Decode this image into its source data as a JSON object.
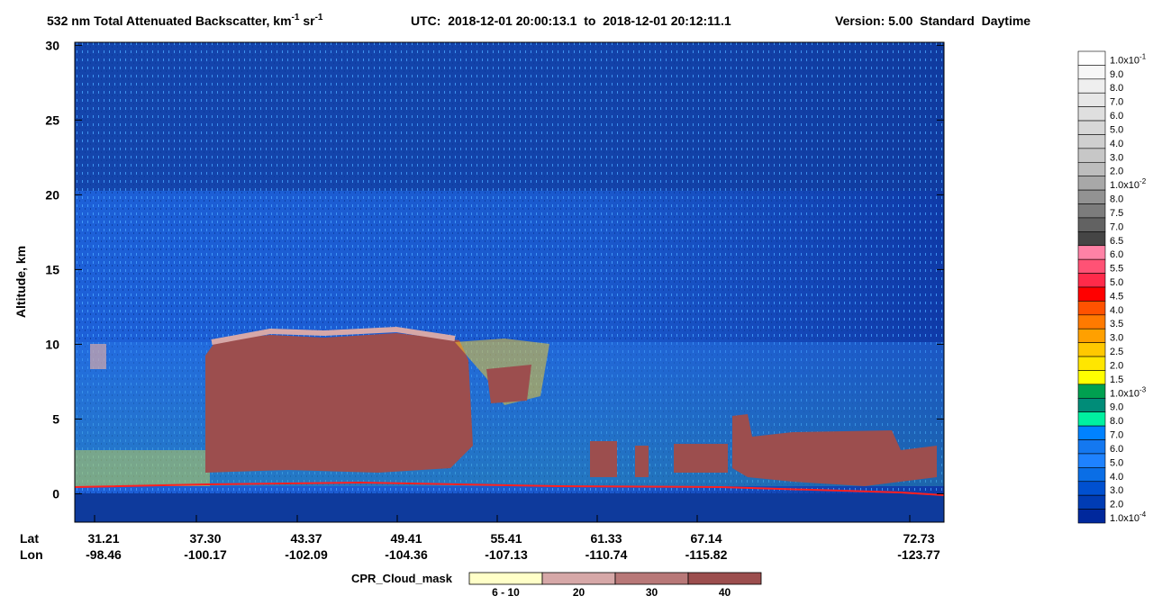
{
  "chart_data": {
    "type": "heatmap",
    "title_parts": [
      "532 nm Total Attenuated Backscatter, km",
      "-1",
      " sr",
      "-1",
      "UTC:  2018-12-01 20:00:13.1  to  2018-12-01 20:12:11.1",
      "Version: 5.00  Standard  Daytime"
    ],
    "y_label": "Altitude, km",
    "ylim": [
      -1.9,
      30.2
    ],
    "yticks": [
      0,
      5,
      10,
      15,
      20,
      25,
      30
    ],
    "x_row_labels": [
      "Lat",
      "Lon"
    ],
    "x_ticks": [
      {
        "lat": "31.21",
        "lon": "-98.46"
      },
      {
        "lat": "37.30",
        "lon": "-100.17"
      },
      {
        "lat": "43.37",
        "lon": "-102.09"
      },
      {
        "lat": "49.41",
        "lon": "-104.36"
      },
      {
        "lat": "55.41",
        "lon": "-107.13"
      },
      {
        "lat": "61.33",
        "lon": "-110.74"
      },
      {
        "lat": "67.14",
        "lon": "-115.82"
      },
      {
        "lat": "72.73",
        "lon": "-123.77"
      }
    ],
    "colorbar": [
      {
        "label": "1.0x10",
        "exp": "-1",
        "color": "#ffffff"
      },
      {
        "label": "9.0",
        "color": "#f7f7f7"
      },
      {
        "label": "8.0",
        "color": "#efefef"
      },
      {
        "label": "7.0",
        "color": "#e7e7e7"
      },
      {
        "label": "6.0",
        "color": "#dfdfdf"
      },
      {
        "label": "5.0",
        "color": "#d7d7d7"
      },
      {
        "label": "4.0",
        "color": "#cfcfcf"
      },
      {
        "label": "3.0",
        "color": "#c7c7c7"
      },
      {
        "label": "2.0",
        "color": "#bdbdbd"
      },
      {
        "label": "1.0x10",
        "exp": "-2",
        "color": "#a8a8a8"
      },
      {
        "label": "8.0",
        "color": "#929292"
      },
      {
        "label": "7.5",
        "color": "#7c7c7c"
      },
      {
        "label": "7.0",
        "color": "#626262"
      },
      {
        "label": "6.5",
        "color": "#454545"
      },
      {
        "label": "6.0",
        "color": "#ff82a6"
      },
      {
        "label": "5.5",
        "color": "#ff5275"
      },
      {
        "label": "5.0",
        "color": "#ff2a4a"
      },
      {
        "label": "4.5",
        "color": "#ff0000"
      },
      {
        "label": "4.0",
        "color": "#ff5200"
      },
      {
        "label": "3.5",
        "color": "#ff7a00"
      },
      {
        "label": "3.0",
        "color": "#ffa000"
      },
      {
        "label": "2.5",
        "color": "#ffc800"
      },
      {
        "label": "2.0",
        "color": "#ffe600"
      },
      {
        "label": "1.5",
        "color": "#ffff00"
      },
      {
        "label": "1.0x10",
        "exp": "-3",
        "color": "#00a050"
      },
      {
        "label": "9.0",
        "color": "#008c78"
      },
      {
        "label": "8.0",
        "color": "#00f0a0"
      },
      {
        "label": "7.0",
        "color": "#0082ff"
      },
      {
        "label": "6.0",
        "color": "#1478f0"
      },
      {
        "label": "5.0",
        "color": "#1e82ff"
      },
      {
        "label": "4.0",
        "color": "#0a6ee6"
      },
      {
        "label": "3.0",
        "color": "#0050d0"
      },
      {
        "label": "2.0",
        "color": "#003cb4"
      },
      {
        "label": "1.0x10",
        "exp": "-4",
        "color": "#00289c"
      }
    ],
    "cpr_legend": {
      "title": "CPR_Cloud_mask",
      "items": [
        {
          "label": "6 - 10",
          "color": "#ffffc8"
        },
        {
          "label": "20",
          "color": "#d6a8a8"
        },
        {
          "label": "30",
          "color": "#b87878"
        },
        {
          "label": "40",
          "color": "#9c4e4e"
        }
      ]
    }
  }
}
